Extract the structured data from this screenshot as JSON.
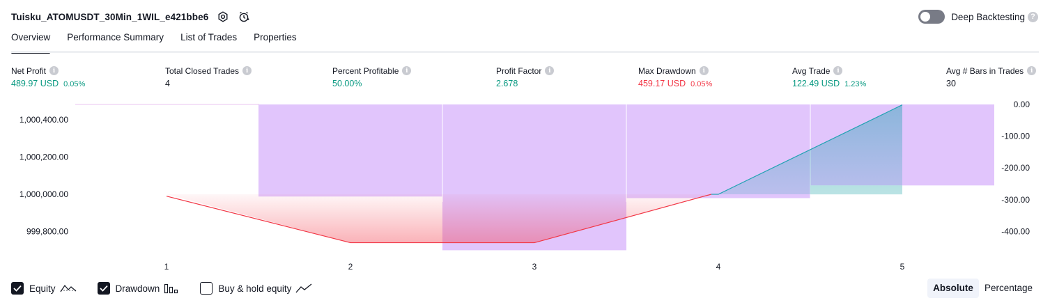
{
  "header": {
    "title": "Tuisku_ATOMUSDT_30Min_1WIL_e421bbe6",
    "icons": [
      "settings-icon",
      "alert-icon"
    ]
  },
  "deep_backtesting": {
    "label": "Deep Backtesting",
    "enabled": false
  },
  "tabs": [
    {
      "label": "Overview",
      "active": true
    },
    {
      "label": "Performance Summary",
      "active": false
    },
    {
      "label": "List of Trades",
      "active": false
    },
    {
      "label": "Properties",
      "active": false
    }
  ],
  "stats": {
    "net_profit": {
      "label": "Net Profit",
      "value": "489.97 USD",
      "pct": "0.05%"
    },
    "total_closed_trades": {
      "label": "Total Closed Trades",
      "value": "4"
    },
    "percent_profitable": {
      "label": "Percent Profitable",
      "value": "50.00%"
    },
    "profit_factor": {
      "label": "Profit Factor",
      "value": "2.678"
    },
    "max_drawdown": {
      "label": "Max Drawdown",
      "value": "459.17 USD",
      "pct": "0.05%"
    },
    "avg_trade": {
      "label": "Avg Trade",
      "value": "122.49 USD",
      "pct": "1.23%"
    },
    "avg_bars": {
      "label": "Avg # Bars in Trades",
      "value": "30"
    }
  },
  "colors": {
    "green": "#089981",
    "red": "#f23645",
    "drawdown_bar": "#e1c5fc",
    "equity_line_up": "#22a3b3",
    "equity_line_down": "#f23645"
  },
  "chart_data": {
    "type": "area",
    "x": [
      1,
      2,
      3,
      4,
      5
    ],
    "x_ticks": [
      "1",
      "2",
      "3",
      "4",
      "5"
    ],
    "equity": [
      999990,
      999740,
      999740,
      1000000,
      1000480
    ],
    "left_axis": {
      "ticks": [
        1000400,
        1000200,
        1000000,
        999800
      ],
      "tick_labels": [
        "1,000,400.00",
        "1,000,200.00",
        "1,000,000.00",
        "999,800.00"
      ],
      "range": [
        999700,
        1000480
      ]
    },
    "right_axis": {
      "ticks": [
        0,
        -100,
        -200,
        -300,
        -400
      ],
      "tick_labels": [
        "0.00",
        "-100.00",
        "-200.00",
        "-300.00",
        "-400.00"
      ],
      "range": [
        -459.17,
        0
      ]
    },
    "drawdown_bars": [
      {
        "x": 2,
        "value": -290
      },
      {
        "x": 3,
        "value": -459.17
      },
      {
        "x": 4,
        "value": -295
      },
      {
        "x": 5,
        "value": -255
      },
      {
        "x": 5.5,
        "value": -255
      }
    ],
    "grid": false
  },
  "legend": [
    {
      "label": "Equity",
      "checked": true,
      "icon": "equity-line-icon"
    },
    {
      "label": "Drawdown",
      "checked": true,
      "icon": "drawdown-bars-icon"
    },
    {
      "label": "Buy & hold equity",
      "checked": false,
      "icon": "buy-hold-line-icon"
    }
  ],
  "mode": {
    "absolute": "Absolute",
    "percentage": "Percentage",
    "active": "absolute"
  }
}
